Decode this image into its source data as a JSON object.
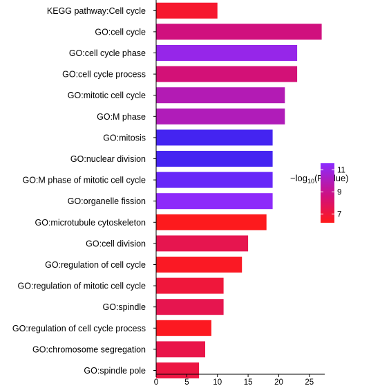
{
  "chart_data": {
    "type": "bar",
    "orientation": "horizontal",
    "categories": [
      "KEGG pathway:Cell cycle",
      "GO:cell cycle",
      "GO:cell cycle phase",
      "GO:cell cycle process",
      "GO:mitotic cell cycle",
      "GO:M phase",
      "GO:mitosis",
      "GO:nuclear division",
      "GO:M phase of mitotic cell cycle",
      "GO:organelle fission",
      "GO:microtubule cytoskeleton",
      "GO:cell division",
      "GO:regulation of cell cycle",
      "GO:regulation of mitotic cell cycle",
      "GO:spindle",
      "GO:regulation of cell cycle process",
      "GO:chromosome segregation",
      "GO:spindle pole"
    ],
    "values": [
      10,
      27,
      23,
      23,
      21,
      21,
      19,
      19,
      19,
      19,
      18,
      15,
      14,
      11,
      11,
      9,
      8,
      7
    ],
    "color_values": [
      6.8,
      9.2,
      11.2,
      9.0,
      10.2,
      10.3,
      12.0,
      12.0,
      11.8,
      11.5,
      6.3,
      7.8,
      6.5,
      7.2,
      7.8,
      6.4,
      7.6,
      7.4
    ],
    "xlim": [
      0,
      27.5
    ],
    "xticks": [
      0,
      5,
      10,
      15,
      20,
      25
    ],
    "xlabel": "",
    "ylabel": "",
    "title": "",
    "grid": false,
    "legend": {
      "title_prefix": "−log",
      "title_subscript": "10",
      "title_suffix": "(PValue)",
      "ticks": [
        11,
        9,
        7
      ],
      "range": [
        6.2,
        11.6
      ],
      "placement": "right",
      "colors": {
        "low": "#ff1a1a",
        "mid": "#d0107e",
        "high": "#8a2bff",
        "max": "#3322ee"
      }
    }
  }
}
